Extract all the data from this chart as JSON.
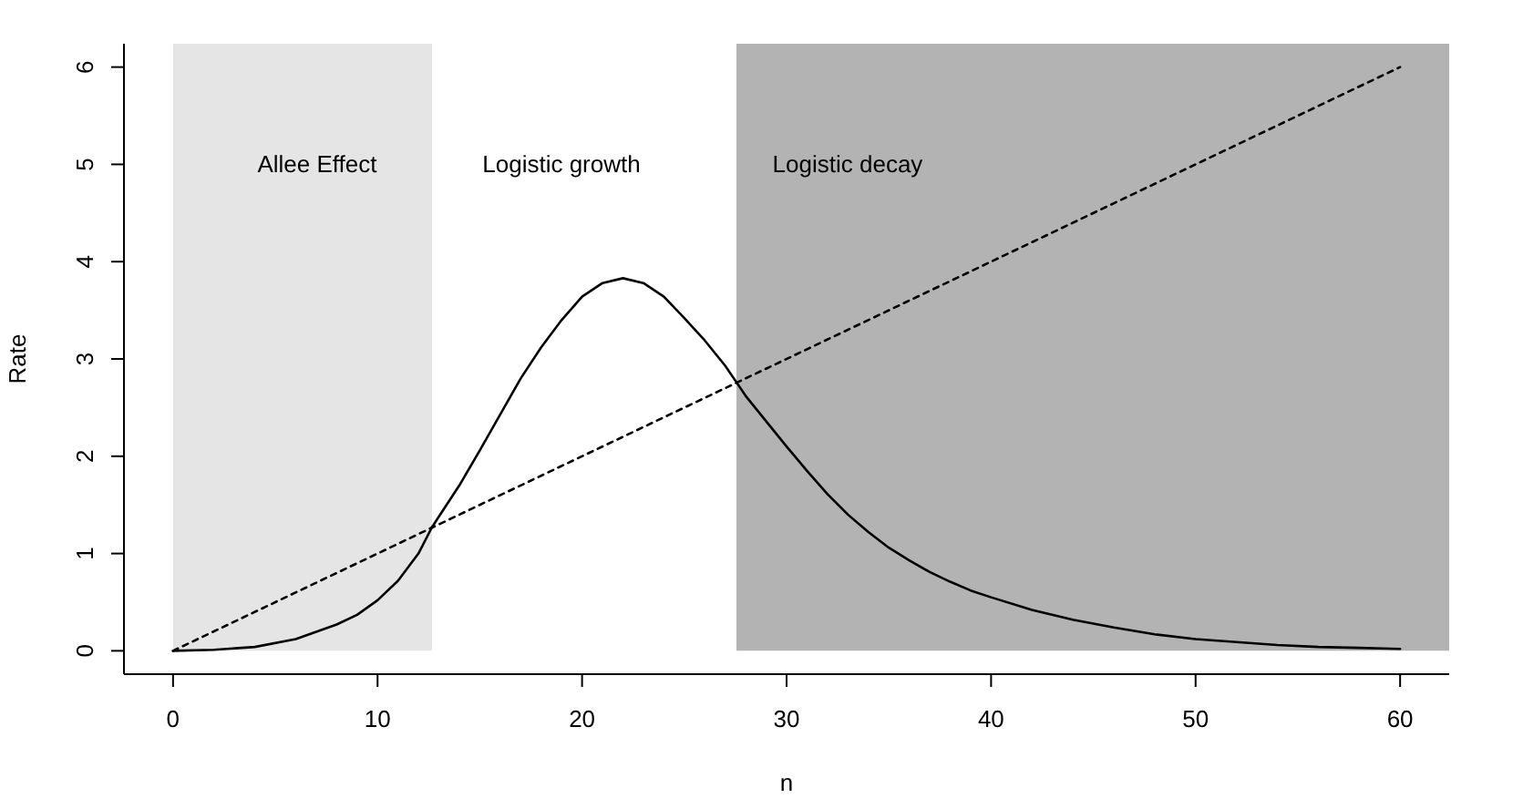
{
  "chart_data": {
    "type": "line",
    "xlabel": "n",
    "ylabel": "Rate",
    "xlim": [
      -2.4,
      62.4
    ],
    "ylim": [
      -0.24,
      6.24
    ],
    "xticks": [
      0,
      10,
      20,
      30,
      40,
      50,
      60
    ],
    "yticks": [
      0,
      1,
      2,
      3,
      4,
      5,
      6
    ],
    "series": [
      {
        "color": "#000000",
        "line_style": "solid",
        "x": [
          0,
          2,
          4,
          6,
          8,
          9,
          10,
          11,
          12,
          12.66,
          13,
          14,
          15,
          16,
          17,
          18,
          19,
          20,
          21,
          22,
          23,
          24,
          25,
          26,
          27,
          27.55,
          28,
          29,
          30,
          31,
          32,
          33,
          34,
          35,
          36,
          37,
          38,
          39,
          40,
          42,
          44,
          46,
          48,
          50,
          52,
          54,
          56,
          58,
          60
        ],
        "values": [
          0,
          0.01,
          0.04,
          0.12,
          0.27,
          0.37,
          0.52,
          0.72,
          1.0,
          1.27,
          1.38,
          1.7,
          2.06,
          2.43,
          2.8,
          3.12,
          3.4,
          3.64,
          3.78,
          3.83,
          3.78,
          3.64,
          3.42,
          3.19,
          2.93,
          2.76,
          2.62,
          2.36,
          2.1,
          1.85,
          1.61,
          1.4,
          1.22,
          1.06,
          0.93,
          0.81,
          0.71,
          0.62,
          0.55,
          0.42,
          0.32,
          0.24,
          0.17,
          0.12,
          0.09,
          0.06,
          0.04,
          0.03,
          0.02
        ]
      },
      {
        "color": "#000000",
        "line_style": "dashed",
        "x": [
          0,
          60
        ],
        "values": [
          0,
          6
        ]
      }
    ],
    "bands": [
      {
        "axis": "x",
        "from": 0,
        "to": 12.66,
        "color": "#e5e5e5"
      },
      {
        "axis": "x",
        "from": 27.55,
        "to": 62.4,
        "color": "#b3b3b3"
      }
    ],
    "annotations": [
      "Allee Effect",
      "Logistic growth",
      "Logistic decay"
    ]
  }
}
